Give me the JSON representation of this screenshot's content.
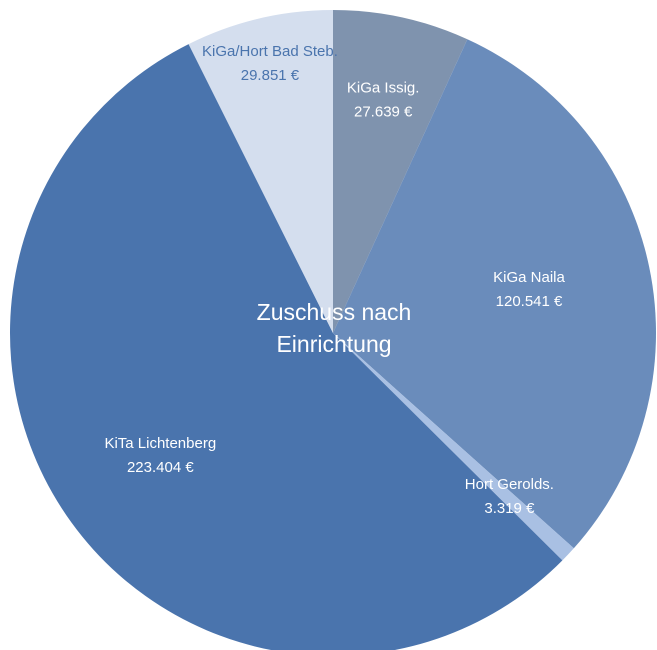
{
  "chart_data": {
    "type": "pie",
    "title": "Zuschuss nach Einrichtung",
    "categories": [
      "KiGa Issig.",
      "KiGa Naila",
      "Hort Gerolds.",
      "KiTa Lichtenberg",
      "KiGa/Hort Bad Steb."
    ],
    "values": [
      27639,
      120541,
      3319,
      223404,
      29851
    ],
    "value_labels": [
      "27.639  €",
      "120.541  €",
      "3.319  €",
      "223.404  €",
      "29.851  €"
    ],
    "colors": [
      "#7f93ae",
      "#6a8cbb",
      "#a9c0e3",
      "#4a74ad",
      "#d4deee"
    ],
    "label_colors": [
      "#ffffff",
      "#ffffff",
      "#ffffff",
      "#ffffff",
      "#4a74ad"
    ]
  }
}
